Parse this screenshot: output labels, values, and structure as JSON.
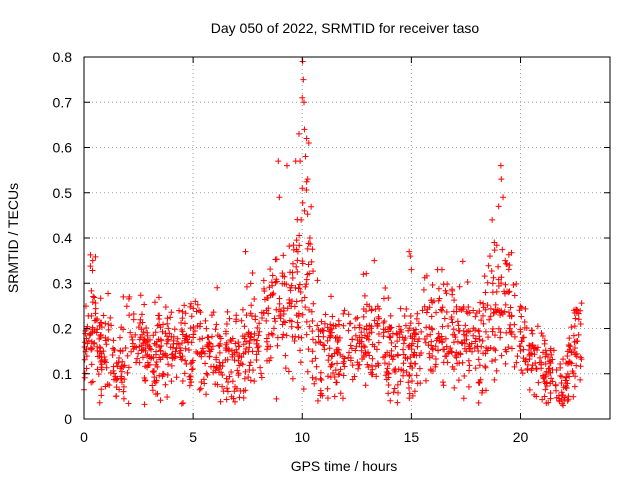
{
  "chart_data": {
    "type": "scatter",
    "title": "Day 050 of 2022, SRMTID for receiver taso",
    "xlabel": "GPS time / hours",
    "ylabel": "SRMTID / TECUs",
    "xlim": [
      0,
      24.1
    ],
    "ylim": [
      0,
      0.8
    ],
    "xticks": [
      0,
      5,
      10,
      15,
      20
    ],
    "xtick_labels": [
      "0",
      "5",
      "10",
      "15",
      "20"
    ],
    "yticks": [
      0,
      0.1,
      0.2,
      0.3,
      0.4,
      0.5,
      0.6,
      0.7,
      0.8
    ],
    "ytick_labels": [
      "0",
      "0.1",
      "0.2",
      "0.3",
      "0.4",
      "0.5",
      "0.6",
      "0.7",
      "0.8"
    ],
    "grid": true,
    "marker": "+",
    "color": "#ff0000",
    "profile_note": "estimated envelope of the point cloud (hour, typical SRMTID, spread)",
    "profile": [
      [
        0.0,
        0.15,
        0.05
      ],
      [
        0.3,
        0.2,
        0.07
      ],
      [
        0.5,
        0.22,
        0.08
      ],
      [
        0.8,
        0.14,
        0.05
      ],
      [
        1.2,
        0.15,
        0.05
      ],
      [
        1.5,
        0.11,
        0.04
      ],
      [
        2.0,
        0.15,
        0.06
      ],
      [
        2.5,
        0.16,
        0.05
      ],
      [
        3.0,
        0.13,
        0.05
      ],
      [
        3.5,
        0.14,
        0.05
      ],
      [
        4.0,
        0.14,
        0.05
      ],
      [
        4.5,
        0.15,
        0.05
      ],
      [
        5.0,
        0.17,
        0.05
      ],
      [
        5.5,
        0.16,
        0.05
      ],
      [
        6.0,
        0.14,
        0.05
      ],
      [
        6.5,
        0.11,
        0.05
      ],
      [
        7.0,
        0.14,
        0.05
      ],
      [
        7.5,
        0.15,
        0.06
      ],
      [
        8.0,
        0.18,
        0.06
      ],
      [
        8.5,
        0.22,
        0.07
      ],
      [
        9.0,
        0.24,
        0.08
      ],
      [
        9.5,
        0.22,
        0.07
      ],
      [
        10.0,
        0.3,
        0.15
      ],
      [
        10.3,
        0.3,
        0.12
      ],
      [
        10.6,
        0.18,
        0.06
      ],
      [
        11.0,
        0.16,
        0.05
      ],
      [
        11.5,
        0.15,
        0.05
      ],
      [
        12.0,
        0.13,
        0.05
      ],
      [
        12.5,
        0.15,
        0.05
      ],
      [
        13.0,
        0.18,
        0.06
      ],
      [
        13.5,
        0.17,
        0.06
      ],
      [
        14.0,
        0.15,
        0.05
      ],
      [
        14.5,
        0.15,
        0.06
      ],
      [
        15.0,
        0.14,
        0.06
      ],
      [
        15.5,
        0.18,
        0.06
      ],
      [
        16.0,
        0.19,
        0.06
      ],
      [
        16.5,
        0.2,
        0.06
      ],
      [
        17.0,
        0.19,
        0.06
      ],
      [
        17.5,
        0.18,
        0.06
      ],
      [
        18.0,
        0.16,
        0.06
      ],
      [
        18.5,
        0.2,
        0.07
      ],
      [
        19.0,
        0.25,
        0.08
      ],
      [
        19.3,
        0.24,
        0.07
      ],
      [
        19.6,
        0.22,
        0.07
      ],
      [
        20.0,
        0.18,
        0.06
      ],
      [
        20.5,
        0.13,
        0.05
      ],
      [
        21.0,
        0.12,
        0.05
      ],
      [
        21.5,
        0.11,
        0.04
      ],
      [
        22.0,
        0.06,
        0.03
      ],
      [
        22.4,
        0.15,
        0.06
      ],
      [
        22.8,
        0.19,
        0.05
      ]
    ],
    "spikes": [
      [
        8.9,
        0.57
      ],
      [
        8.95,
        0.49
      ],
      [
        9.3,
        0.56
      ],
      [
        9.7,
        0.57
      ],
      [
        9.85,
        0.63
      ],
      [
        9.9,
        0.57
      ],
      [
        10.0,
        0.71
      ],
      [
        10.02,
        0.79
      ],
      [
        10.05,
        0.75
      ],
      [
        10.08,
        0.7
      ],
      [
        10.1,
        0.64
      ],
      [
        10.15,
        0.58
      ],
      [
        10.2,
        0.62
      ],
      [
        10.25,
        0.53
      ],
      [
        10.3,
        0.61
      ],
      [
        10.0,
        0.51
      ],
      [
        9.95,
        0.44
      ],
      [
        10.1,
        0.46
      ],
      [
        9.8,
        0.37
      ],
      [
        10.35,
        0.4
      ],
      [
        7.4,
        0.37
      ],
      [
        6.1,
        0.29
      ],
      [
        5.1,
        0.26
      ],
      [
        1.8,
        0.27
      ],
      [
        0.4,
        0.35
      ],
      [
        14.9,
        0.37
      ],
      [
        14.95,
        0.36
      ],
      [
        15.0,
        0.33
      ],
      [
        13.3,
        0.35
      ],
      [
        12.8,
        0.32
      ],
      [
        16.2,
        0.33
      ],
      [
        16.4,
        0.33
      ],
      [
        18.6,
        0.36
      ],
      [
        18.7,
        0.44
      ],
      [
        18.8,
        0.39
      ],
      [
        19.1,
        0.56
      ],
      [
        19.12,
        0.53
      ],
      [
        19.2,
        0.49
      ],
      [
        19.0,
        0.47
      ],
      [
        19.3,
        0.35
      ],
      [
        19.5,
        0.34
      ],
      [
        21.95,
        0.03
      ],
      [
        22.0,
        0.04
      ],
      [
        22.6,
        0.24
      ]
    ]
  }
}
